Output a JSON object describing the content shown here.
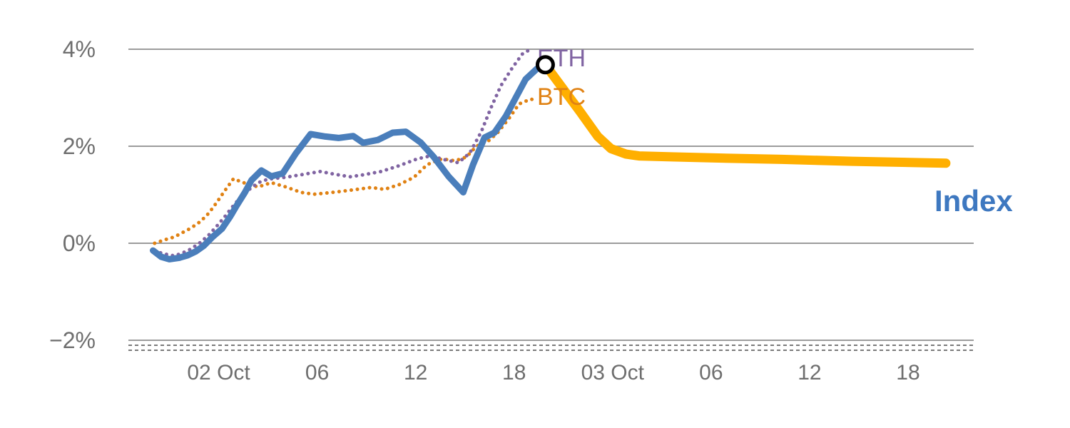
{
  "chart_data": {
    "type": "line",
    "title": "",
    "xlabel": "",
    "ylabel": "",
    "x_unit": "hours",
    "ylim": [
      -2.4,
      4.3
    ],
    "grid": true,
    "y_ticks": [
      {
        "value": 4,
        "label": "4%"
      },
      {
        "value": 2,
        "label": "2%"
      },
      {
        "value": 0,
        "label": "0%"
      },
      {
        "value": -2,
        "label": "−2%"
      }
    ],
    "x_ticks": [
      {
        "hour": 4,
        "label": "02 Oct"
      },
      {
        "hour": 10,
        "label": "06"
      },
      {
        "hour": 16,
        "label": "12"
      },
      {
        "hour": 22,
        "label": "18"
      },
      {
        "hour": 28,
        "label": "03 Oct"
      },
      {
        "hour": 34,
        "label": "06"
      },
      {
        "hour": 40,
        "label": "12"
      },
      {
        "hour": 46,
        "label": "18"
      }
    ],
    "series": [
      {
        "name": "BTC",
        "style": "dotted",
        "color": "#E08214",
        "width": 5,
        "points": [
          [
            0.1,
            0
          ],
          [
            0.7,
            0.07
          ],
          [
            1.3,
            0.13
          ],
          [
            1.8,
            0.22
          ],
          [
            2.3,
            0.31
          ],
          [
            2.9,
            0.45
          ],
          [
            3.4,
            0.62
          ],
          [
            3.9,
            0.85
          ],
          [
            4.3,
            1.05
          ],
          [
            4.9,
            1.33
          ],
          [
            5.5,
            1.25
          ],
          [
            6.4,
            1.16
          ],
          [
            7.2,
            1.25
          ],
          [
            8.1,
            1.16
          ],
          [
            9,
            1.05
          ],
          [
            9.8,
            1.01
          ],
          [
            10.7,
            1.04
          ],
          [
            11.5,
            1.07
          ],
          [
            12.4,
            1.11
          ],
          [
            13.3,
            1.15
          ],
          [
            14.1,
            1.11
          ],
          [
            15,
            1.21
          ],
          [
            15.9,
            1.36
          ],
          [
            16.7,
            1.62
          ],
          [
            17.6,
            1.74
          ],
          [
            18.4,
            1.7
          ],
          [
            19.1,
            1.78
          ],
          [
            19.7,
            2
          ],
          [
            20.4,
            2.1
          ],
          [
            21,
            2.28
          ],
          [
            21.7,
            2.58
          ],
          [
            22.3,
            2.87
          ],
          [
            23,
            2.97
          ],
          [
            23.4,
            2.95
          ]
        ]
      },
      {
        "name": "ETH",
        "style": "dotted",
        "color": "#8064A2",
        "width": 5,
        "points": [
          [
            0.1,
            -0.16
          ],
          [
            0.7,
            -0.22
          ],
          [
            1.3,
            -0.26
          ],
          [
            1.8,
            -0.2
          ],
          [
            2.3,
            -0.12
          ],
          [
            2.9,
            0.02
          ],
          [
            3.4,
            0.17
          ],
          [
            3.9,
            0.36
          ],
          [
            4.4,
            0.56
          ],
          [
            5,
            0.82
          ],
          [
            5.5,
            1
          ],
          [
            6,
            1.15
          ],
          [
            6.5,
            1.26
          ],
          [
            7,
            1.32
          ],
          [
            7.5,
            1.34
          ],
          [
            8.1,
            1.36
          ],
          [
            8.6,
            1.39
          ],
          [
            9,
            1.41
          ],
          [
            9.5,
            1.44
          ],
          [
            10.2,
            1.48
          ],
          [
            11.1,
            1.42
          ],
          [
            12,
            1.37
          ],
          [
            12.8,
            1.41
          ],
          [
            13.9,
            1.48
          ],
          [
            15,
            1.6
          ],
          [
            16.1,
            1.74
          ],
          [
            16.9,
            1.8
          ],
          [
            17.8,
            1.72
          ],
          [
            18.6,
            1.66
          ],
          [
            19.3,
            1.86
          ],
          [
            20,
            2.3
          ],
          [
            20.6,
            2.8
          ],
          [
            21.2,
            3.25
          ],
          [
            21.9,
            3.62
          ],
          [
            22.5,
            3.9
          ],
          [
            23.1,
            4.02
          ]
        ]
      },
      {
        "name": "Index",
        "style": "solid",
        "color": "#4A7EBB",
        "width": 9,
        "points": [
          [
            0,
            -0.15
          ],
          [
            0.5,
            -0.28
          ],
          [
            1,
            -0.33
          ],
          [
            1.6,
            -0.3
          ],
          [
            2.1,
            -0.25
          ],
          [
            2.6,
            -0.17
          ],
          [
            3.1,
            -0.05
          ],
          [
            3.6,
            0.12
          ],
          [
            4.2,
            0.3
          ],
          [
            4.7,
            0.55
          ],
          [
            5.1,
            0.78
          ],
          [
            5.6,
            1.05
          ],
          [
            6,
            1.3
          ],
          [
            6.6,
            1.5
          ],
          [
            7.2,
            1.38
          ],
          [
            7.9,
            1.44
          ],
          [
            8.7,
            1.85
          ],
          [
            9.6,
            2.25
          ],
          [
            10.5,
            2.2
          ],
          [
            11.3,
            2.17
          ],
          [
            12.2,
            2.21
          ],
          [
            12.8,
            2.07
          ],
          [
            13.7,
            2.13
          ],
          [
            14.6,
            2.28
          ],
          [
            15.4,
            2.3
          ],
          [
            16.3,
            2.08
          ],
          [
            17.1,
            1.78
          ],
          [
            18,
            1.38
          ],
          [
            18.9,
            1.05
          ],
          [
            19.5,
            1.62
          ],
          [
            20.2,
            2.18
          ],
          [
            20.8,
            2.28
          ],
          [
            21.5,
            2.62
          ],
          [
            22.1,
            3
          ],
          [
            22.7,
            3.38
          ],
          [
            23.4,
            3.6
          ],
          [
            23.9,
            3.68
          ]
        ]
      },
      {
        "name": "Index-projection",
        "style": "solid",
        "color": "#FFAF00",
        "width": 13,
        "points": [
          [
            23.9,
            3.68
          ],
          [
            24.9,
            3.22
          ],
          [
            26,
            2.72
          ],
          [
            27.1,
            2.2
          ],
          [
            27.9,
            1.95
          ],
          [
            28.8,
            1.84
          ],
          [
            29.6,
            1.8
          ],
          [
            31.8,
            1.78
          ],
          [
            34,
            1.76
          ],
          [
            38.3,
            1.73
          ],
          [
            42.6,
            1.69
          ],
          [
            46.9,
            1.66
          ],
          [
            48.3,
            1.65
          ]
        ]
      }
    ],
    "marker": {
      "hour": 23.9,
      "value": 3.68,
      "shape": "circle",
      "stroke_color": "#000000",
      "fill_color": "#ffffff"
    },
    "labels": {
      "eth": "ETH",
      "btc": "BTC",
      "index": "Index"
    },
    "label_colors": {
      "eth": "#8064A2",
      "btc": "#E08214",
      "index": "#3E78C0"
    },
    "grid_color": "#9C9C9C"
  }
}
